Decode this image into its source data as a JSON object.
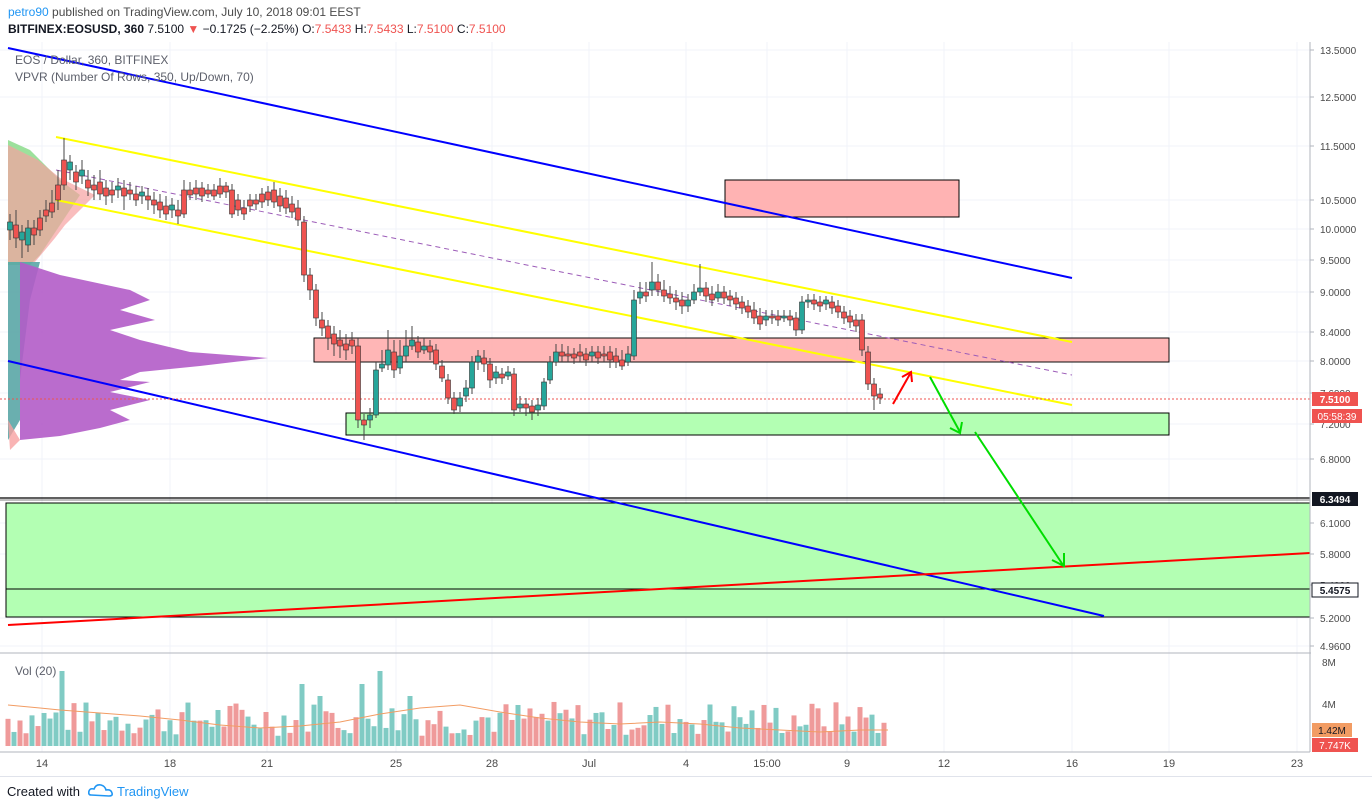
{
  "header": {
    "user": "petro90",
    "published_text": "published on TradingView.com, July 10, 2018 09:01 EEST",
    "symbol": "BITFINEX:EOSUSD, 360",
    "last": "7.5100",
    "change": "−0.1725 (−2.25%)",
    "open_label": "O:",
    "open": "7.5433",
    "high_label": "H:",
    "high": "7.5433",
    "low_label": "L:",
    "low": "7.5100",
    "close_label": "C:",
    "close": "7.5100"
  },
  "legend": {
    "instrument": "EOS / Dollar, 360, BITFINEX",
    "indicator": "VPVR (Number Of Rows, 350, Up/Down, 70)",
    "volume": "Vol (20)"
  },
  "price_axis": {
    "ticks": [
      "13.5000",
      "12.5000",
      "11.5000",
      "10.5000",
      "10.0000",
      "9.5000",
      "9.0000",
      "8.4000",
      "8.0000",
      "7.6000",
      "7.2000",
      "6.8000",
      "6.1000",
      "5.8000",
      "5.4000",
      "5.2000",
      "4.9600"
    ],
    "last_price": "7.5100",
    "countdown": "05:58:39",
    "level_1": "6.3494",
    "level_2": "5.4575"
  },
  "volume_axis": {
    "ticks": [
      "8M",
      "4M"
    ],
    "ma_value": "1.42M",
    "last_value": "7.747K"
  },
  "time_axis": {
    "labels": [
      "14",
      "18",
      "21",
      "25",
      "28",
      "Jul",
      "4",
      "15:00",
      "9",
      "12",
      "16",
      "19",
      "23"
    ]
  },
  "colors": {
    "up": "#26a69a",
    "down": "#ef5350",
    "channel_blue": "#0000ff",
    "channel_yellow": "#ffff00",
    "support_red": "#ff0000",
    "zone_green": "#b3ffb3",
    "zone_pink": "#ffb3b3",
    "arrow_green": "#00dd00"
  },
  "footer": {
    "created_with": "Created with",
    "brand": "TradingView"
  }
}
